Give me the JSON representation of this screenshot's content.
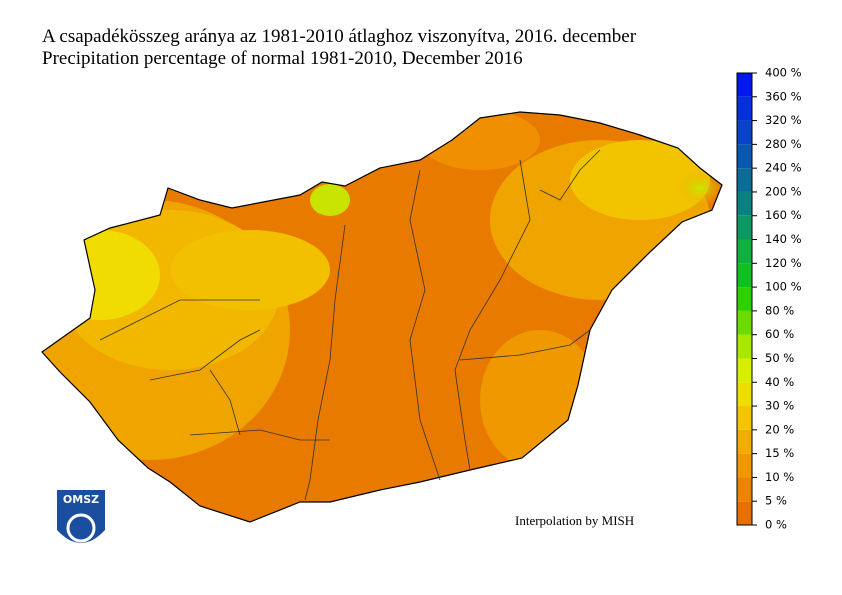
{
  "title": {
    "line1": "A csapadékösszeg aránya az 1981-2010 átlaghoz viszonyítva, 2016. december",
    "line2": "Precipitation percentage of normal 1981-2010, December 2016"
  },
  "legend": {
    "labels": [
      "0 %",
      "5 %",
      "10 %",
      "15 %",
      "20 %",
      "30 %",
      "40 %",
      "50 %",
      "60 %",
      "80 %",
      "100 %",
      "120 %",
      "140 %",
      "160 %",
      "200 %",
      "240 %",
      "280 %",
      "320 %",
      "360 %",
      "400 %"
    ],
    "colors": [
      "#e87000",
      "#ec8400",
      "#f09800",
      "#f2ac00",
      "#f4c400",
      "#eede00",
      "#d8f000",
      "#a8e800",
      "#6cdc00",
      "#30d000",
      "#10c020",
      "#10b040",
      "#0c9860",
      "#0c8080",
      "#0c6c98",
      "#0858b0",
      "#0844c8",
      "#0430dc",
      "#0018f0"
    ]
  },
  "credit": "Interpolation by MISH",
  "logo": "OMSZ"
}
